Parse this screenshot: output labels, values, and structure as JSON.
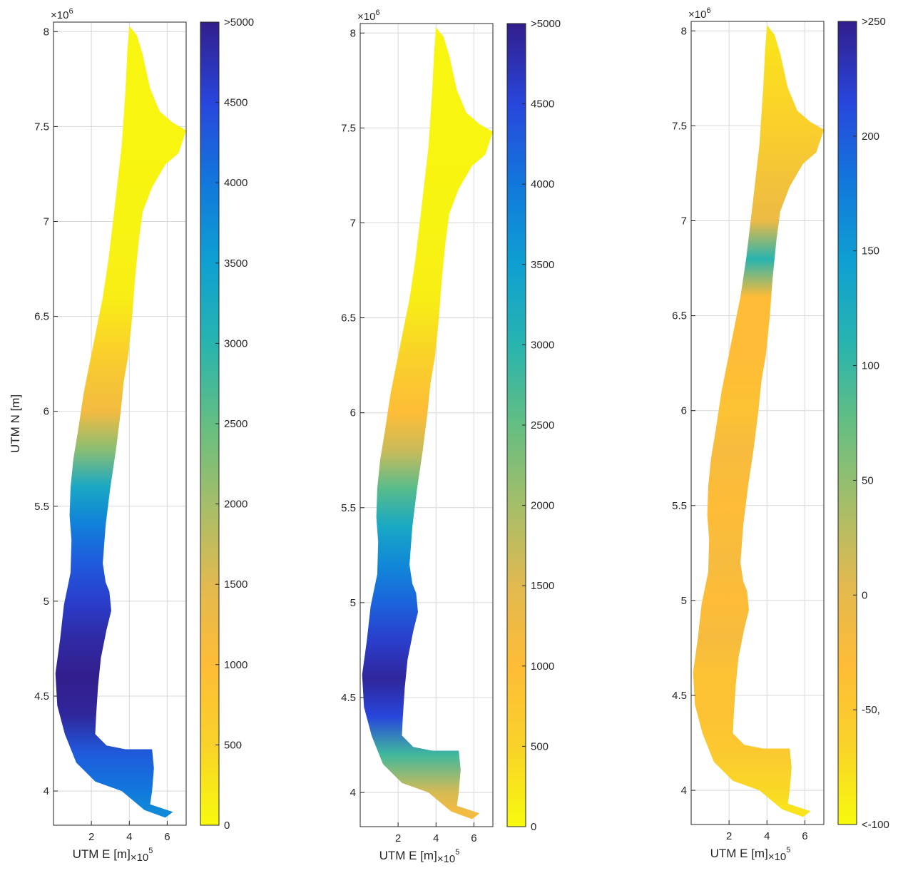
{
  "chart_data": [
    {
      "type": "heatmap",
      "title": "",
      "xlabel": "UTM E [m]",
      "x_multiplier": "×10^5",
      "ylabel": "UTM N [m]",
      "y_multiplier": "×10^6",
      "xlim": [
        0,
        7
      ],
      "ylim": [
        3.82,
        8.05
      ],
      "xticks": [
        "2",
        "4",
        "6"
      ],
      "yticks": [
        "4",
        "4.5",
        "5",
        "5.5",
        "6",
        "6.5",
        "7",
        "7.5",
        "8"
      ],
      "grid": true,
      "colormap": "parula",
      "colorbar": {
        "range": [
          0,
          5000
        ],
        "ticks": [
          "0",
          "500",
          "1000",
          "1500",
          "2000",
          "2500",
          "3000",
          "3500",
          "4000",
          "4500",
          ">5000"
        ]
      },
      "profile": [
        {
          "n": 7.95,
          "v": 50
        },
        {
          "n": 7.5,
          "v": 60
        },
        {
          "n": 7.0,
          "v": 80
        },
        {
          "n": 6.6,
          "v": 150
        },
        {
          "n": 6.3,
          "v": 600
        },
        {
          "n": 6.0,
          "v": 1200
        },
        {
          "n": 5.8,
          "v": 2200
        },
        {
          "n": 5.6,
          "v": 3300
        },
        {
          "n": 5.4,
          "v": 3900
        },
        {
          "n": 5.2,
          "v": 4300
        },
        {
          "n": 5.0,
          "v": 4600
        },
        {
          "n": 4.8,
          "v": 4850
        },
        {
          "n": 4.6,
          "v": 5000
        },
        {
          "n": 4.4,
          "v": 4900
        },
        {
          "n": 4.2,
          "v": 4300
        },
        {
          "n": 4.0,
          "v": 4000
        },
        {
          "n": 3.9,
          "v": 3800
        }
      ]
    },
    {
      "type": "heatmap",
      "title": "",
      "xlabel": "UTM E [m]",
      "x_multiplier": "×10^5",
      "ylabel": "",
      "y_multiplier": "×10^6",
      "xlim": [
        0,
        7
      ],
      "ylim": [
        3.82,
        8.05
      ],
      "xticks": [
        "2",
        "4",
        "6"
      ],
      "yticks": [
        "4",
        "4.5",
        "5",
        "5.5",
        "6",
        "6.5",
        "7",
        "7.5",
        "8"
      ],
      "grid": true,
      "colormap": "parula",
      "colorbar": {
        "range": [
          0,
          5000
        ],
        "ticks": [
          "0",
          "500",
          "1000",
          "1500",
          "2000",
          "2500",
          "3000",
          "3500",
          "4000",
          "4500",
          ">5000"
        ]
      },
      "profile": [
        {
          "n": 7.95,
          "v": 50
        },
        {
          "n": 7.5,
          "v": 60
        },
        {
          "n": 7.0,
          "v": 80
        },
        {
          "n": 6.6,
          "v": 150
        },
        {
          "n": 6.3,
          "v": 500
        },
        {
          "n": 6.0,
          "v": 1000
        },
        {
          "n": 5.8,
          "v": 1700
        },
        {
          "n": 5.6,
          "v": 2600
        },
        {
          "n": 5.4,
          "v": 3300
        },
        {
          "n": 5.2,
          "v": 3800
        },
        {
          "n": 5.0,
          "v": 4200
        },
        {
          "n": 4.8,
          "v": 4600
        },
        {
          "n": 4.6,
          "v": 4900
        },
        {
          "n": 4.4,
          "v": 4500
        },
        {
          "n": 4.2,
          "v": 2800
        },
        {
          "n": 4.0,
          "v": 1600
        },
        {
          "n": 3.9,
          "v": 1200
        }
      ]
    },
    {
      "type": "heatmap",
      "title": "",
      "xlabel": "UTM E [m]",
      "x_multiplier": "×10^5",
      "ylabel": "",
      "y_multiplier": "×10^6",
      "xlim": [
        0,
        7
      ],
      "ylim": [
        3.82,
        8.05
      ],
      "xticks": [
        "2",
        "4",
        "6"
      ],
      "yticks": [
        "4",
        "4.5",
        "5",
        "5.5",
        "6",
        "6.5",
        "7",
        "7.5",
        "8"
      ],
      "grid": true,
      "colormap": "parula",
      "colorbar": {
        "range": [
          -100,
          250
        ],
        "ticks": [
          "<-100",
          "-50,",
          "0",
          "50",
          "100",
          "150",
          "200",
          ">250"
        ]
      },
      "profile": [
        {
          "n": 7.95,
          "v": -80
        },
        {
          "n": 7.5,
          "v": -60
        },
        {
          "n": 7.0,
          "v": -10
        },
        {
          "n": 6.8,
          "v": 110
        },
        {
          "n": 6.6,
          "v": -30
        },
        {
          "n": 6.3,
          "v": -30
        },
        {
          "n": 6.0,
          "v": -40
        },
        {
          "n": 5.8,
          "v": -20
        },
        {
          "n": 5.5,
          "v": -30
        },
        {
          "n": 5.2,
          "v": -20
        },
        {
          "n": 5.0,
          "v": -30
        },
        {
          "n": 4.8,
          "v": -20
        },
        {
          "n": 4.6,
          "v": -40
        },
        {
          "n": 4.4,
          "v": -40
        },
        {
          "n": 4.2,
          "v": -50
        },
        {
          "n": 4.0,
          "v": -70
        },
        {
          "n": 3.9,
          "v": -80
        }
      ]
    }
  ]
}
